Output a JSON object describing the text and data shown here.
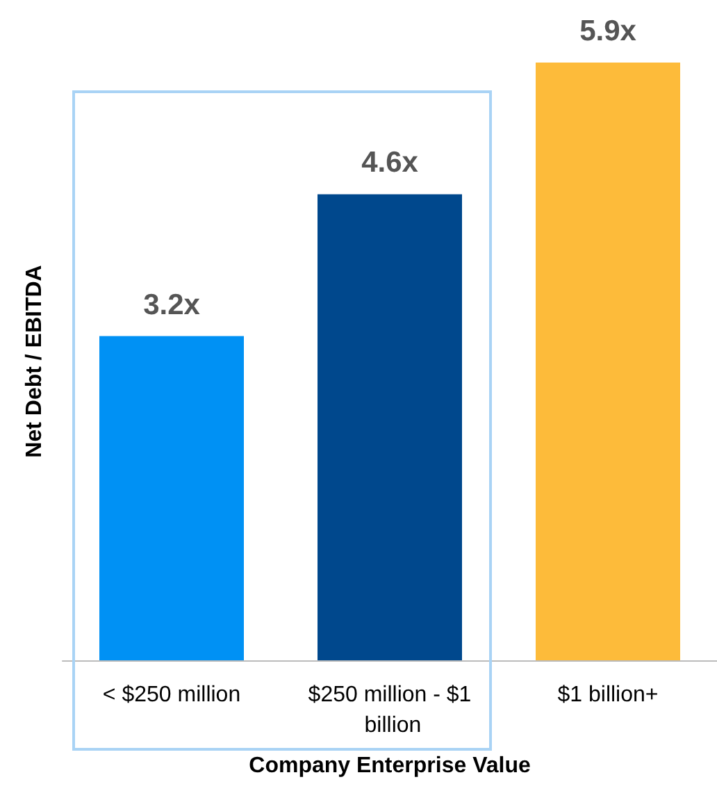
{
  "chart_data": {
    "type": "bar",
    "xlabel": "Company Enterprise Value",
    "ylabel": "Net Debt / EBITDA",
    "categories": [
      "< $250 million",
      "$250 million - $1 billion",
      "$1 billion+"
    ],
    "values": [
      3.2,
      4.6,
      5.9
    ],
    "colors": [
      "#0091f4",
      "#00488d",
      "#fdbb3a"
    ],
    "value_labels": [
      "3.2x",
      "4.6x",
      "5.9x"
    ]
  }
}
